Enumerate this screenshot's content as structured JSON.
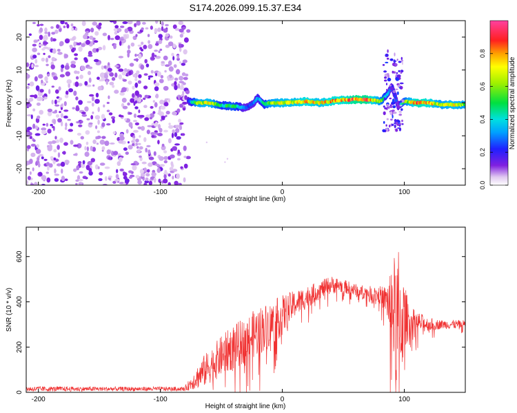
{
  "title": "S174.2026.099.15.37.E34",
  "chart_data": [
    {
      "type": "heatmap",
      "xlabel": "Height of straight line (km)",
      "ylabel": "Frequency (Hz)",
      "xlim": [
        -210,
        150
      ],
      "ylim": [
        -25,
        25
      ],
      "xticks": [
        -200,
        -100,
        0,
        100
      ],
      "yticks": [
        -20,
        -10,
        0,
        10,
        20
      ],
      "colorbar": {
        "label": "Normalized spectral amplitude",
        "range": [
          0,
          1
        ],
        "ticks": [
          "0.0",
          "0.2",
          "0.4",
          "0.6",
          "0.8"
        ],
        "tick_values": [
          0.0,
          0.2,
          0.4,
          0.6,
          0.8
        ]
      },
      "noise_region_km": [
        -210,
        -77
      ],
      "signal_track": {
        "x": [
          -77,
          -70,
          -60,
          -50,
          -40,
          -30,
          -25,
          -20,
          -15,
          -10,
          0,
          10,
          20,
          30,
          40,
          50,
          60,
          70,
          80,
          85,
          90,
          95,
          100,
          110,
          120,
          130,
          140,
          150
        ],
        "freq_hz": [
          0.5,
          0.0,
          0.0,
          -0.8,
          -1.0,
          -1.5,
          -0.5,
          1.5,
          -0.5,
          0.0,
          0.0,
          0.2,
          0.5,
          0.0,
          0.5,
          1.0,
          1.0,
          1.0,
          0.5,
          2.0,
          5.0,
          -1.0,
          0.5,
          0.0,
          0.0,
          -0.5,
          -0.5,
          -0.5
        ],
        "amplitude": [
          0.3,
          0.7,
          0.8,
          0.5,
          0.6,
          0.3,
          0.3,
          0.4,
          0.5,
          0.7,
          0.8,
          0.8,
          0.9,
          0.8,
          0.9,
          0.9,
          1.0,
          1.0,
          0.7,
          0.5,
          0.25,
          0.3,
          0.6,
          0.95,
          0.9,
          0.7,
          0.8,
          0.7
        ]
      }
    },
    {
      "type": "line",
      "xlabel": "Height of straight line (km)",
      "ylabel": "SNR (10 * v/v)",
      "xlim": [
        -210,
        150
      ],
      "ylim": [
        0,
        730
      ],
      "xticks": [
        -200,
        -100,
        0,
        100
      ],
      "yticks": [
        0,
        200,
        400,
        600
      ],
      "color": "#f03232",
      "series_envelope": {
        "x": [
          -210,
          -150,
          -100,
          -80,
          -65,
          -50,
          -40,
          -30,
          -20,
          -10,
          0,
          10,
          20,
          30,
          40,
          50,
          60,
          70,
          80,
          85,
          90,
          95,
          100,
          105,
          110,
          120,
          130,
          140,
          150
        ],
        "y_mean": [
          15,
          15,
          15,
          15,
          90,
          160,
          200,
          230,
          270,
          300,
          340,
          390,
          420,
          450,
          475,
          470,
          450,
          440,
          430,
          410,
          380,
          300,
          330,
          320,
          310,
          300,
          300,
          300,
          300
        ],
        "y_spread": [
          12,
          10,
          10,
          10,
          70,
          90,
          100,
          100,
          110,
          100,
          90,
          60,
          50,
          40,
          40,
          30,
          30,
          30,
          40,
          60,
          200,
          350,
          150,
          60,
          50,
          30,
          20,
          20,
          20
        ]
      }
    }
  ]
}
